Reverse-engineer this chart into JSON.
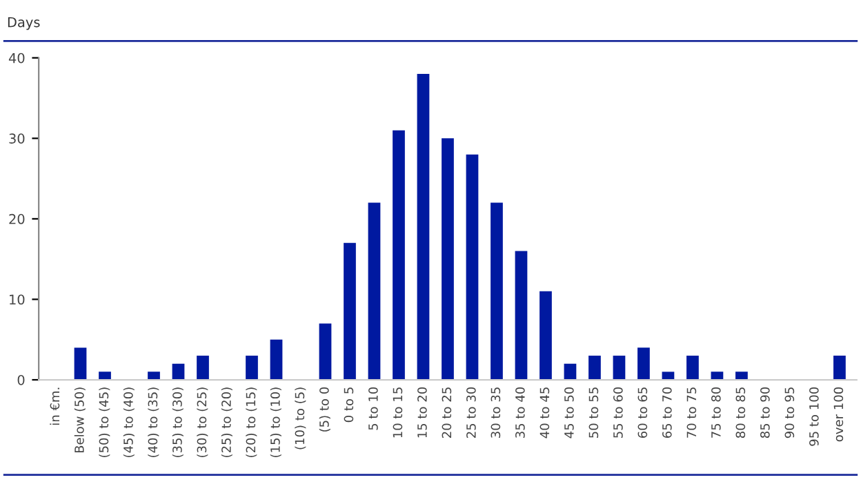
{
  "chart_data": {
    "type": "bar",
    "title": "Days",
    "categories": [
      "in €m.",
      "Below (50)",
      "(50) to (45)",
      "(45) to (40)",
      "(40) to (35)",
      "(35) to (30)",
      "(30) to (25)",
      "(25) to (20)",
      "(20) to (15)",
      "(15) to (10)",
      "(10) to (5)",
      "(5) to 0",
      "0 to 5",
      "5 to 10",
      "10 to 15",
      "15 to 20",
      "20 to 25",
      "25 to 30",
      "30 to 35",
      "35 to 40",
      "40 to 45",
      "45 to 50",
      "50 to 55",
      "55 to 60",
      "60 to 65",
      "65 to 70",
      "70 to 75",
      "75 to 80",
      "80 to 85",
      "85 to 90",
      "90 to 95",
      "95 to 100",
      "over 100"
    ],
    "values": [
      null,
      4,
      1,
      0,
      1,
      2,
      3,
      0,
      3,
      5,
      0,
      7,
      17,
      22,
      31,
      38,
      30,
      28,
      22,
      16,
      11,
      2,
      3,
      3,
      4,
      1,
      3,
      1,
      1,
      0,
      0,
      0,
      3
    ],
    "color": "#0019a0",
    "ylim": [
      0,
      40
    ],
    "yticks": [
      0,
      10,
      20,
      30,
      40
    ],
    "grid": false,
    "legend": false
  }
}
